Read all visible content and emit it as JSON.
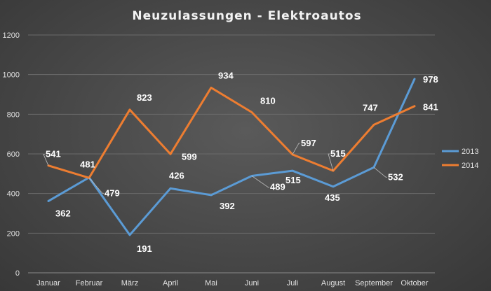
{
  "chart_data": {
    "type": "line",
    "title": "Neuzulassungen - Elektroautos",
    "categories": [
      "Januar",
      "Februar",
      "März",
      "April",
      "Mai",
      "Juni",
      "Juli",
      "August",
      "September",
      "Oktober"
    ],
    "series": [
      {
        "name": "2013",
        "color": "#5b9bd5",
        "values": [
          362,
          481,
          191,
          426,
          392,
          489,
          515,
          435,
          532,
          978
        ],
        "labels": [
          "362",
          "481",
          "191",
          "426",
          "392",
          "489",
          "515",
          "435",
          "532",
          "978"
        ]
      },
      {
        "name": "2014",
        "color": "#ed7d31",
        "values": [
          541,
          479,
          823,
          599,
          934,
          810,
          597,
          515,
          747,
          841
        ],
        "labels": [
          "541",
          "479",
          "823",
          "599",
          "934",
          "810",
          "597",
          "515",
          "747",
          "841"
        ]
      }
    ],
    "ylim": [
      0,
      1200
    ],
    "yticks": [
      0,
      200,
      400,
      600,
      800,
      1000,
      1200
    ],
    "ytick_labels": [
      "0",
      "200",
      "400",
      "600",
      "800",
      "1000",
      "1200"
    ],
    "grid": true,
    "legend_position": "right"
  }
}
